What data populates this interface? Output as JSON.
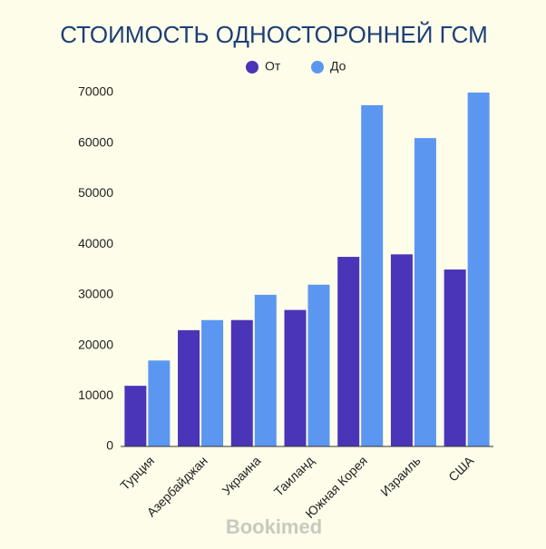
{
  "chart_data": {
    "type": "bar",
    "title": "СТОИМОСТЬ ОДНОСТОРОННЕЙ ГСМ",
    "categories": [
      "Турция",
      "Азербайджан",
      "Украина",
      "Таиланд",
      "Южная Корея",
      "Израиль",
      "США"
    ],
    "series": [
      {
        "name": "От",
        "color": "#4a34b8",
        "values": [
          12000,
          23000,
          25000,
          27000,
          37500,
          38000,
          35000
        ]
      },
      {
        "name": "До",
        "color": "#5b97f0",
        "values": [
          17000,
          25000,
          30000,
          32000,
          67500,
          61000,
          70000
        ]
      }
    ],
    "ylim": [
      0,
      70000
    ],
    "yticks": [
      0,
      10000,
      20000,
      30000,
      40000,
      50000,
      60000,
      70000
    ],
    "grid": false,
    "legend": "top",
    "watermark": "Bookimed"
  }
}
